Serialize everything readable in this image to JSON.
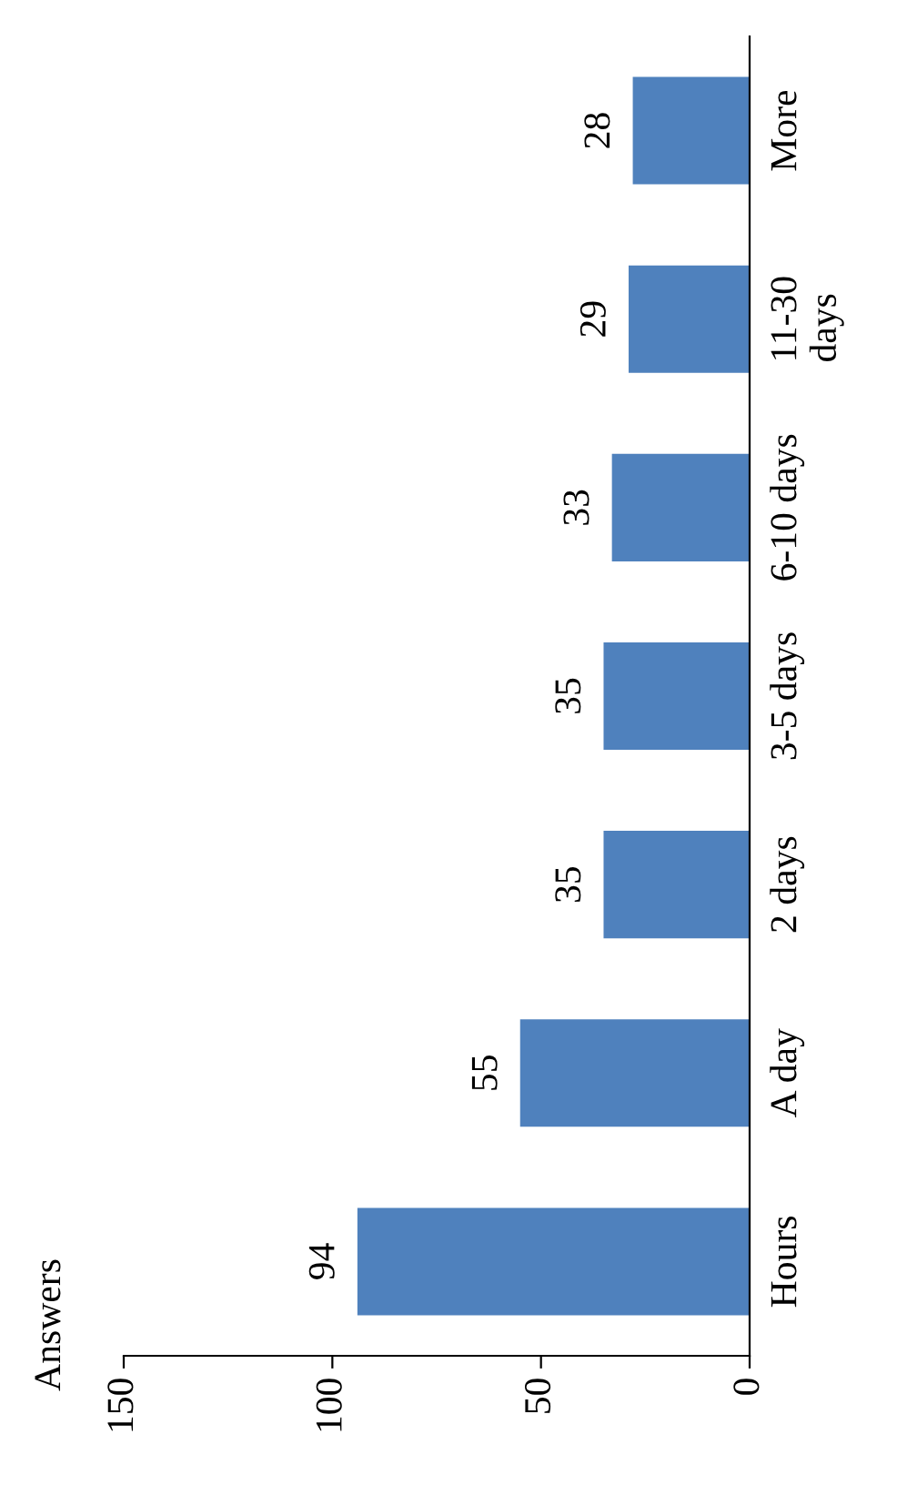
{
  "chart_data": {
    "type": "bar",
    "orientation": "horizontal",
    "annotations": [
      "Answers"
    ],
    "categories": [
      "More",
      "11-30\ndays",
      "6-10 days",
      "3-5 days",
      "2 days",
      "A day",
      "Hours"
    ],
    "values": [
      28,
      29,
      33,
      35,
      35,
      55,
      94
    ],
    "color": "#4f81bd",
    "xlim": [
      150,
      0
    ],
    "xticks": [
      150,
      100,
      50,
      0
    ],
    "data_labels": true,
    "grid": false,
    "legend": false
  }
}
